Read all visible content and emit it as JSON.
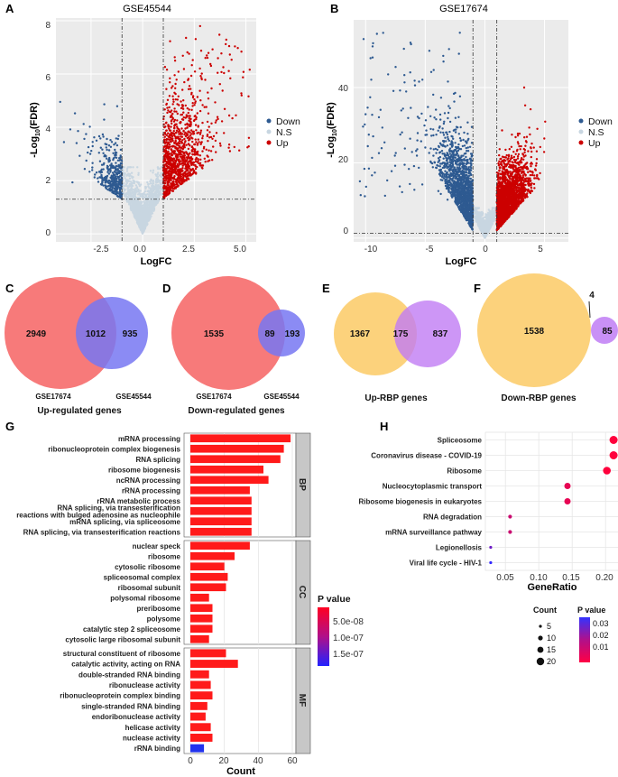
{
  "panels": {
    "A": "A",
    "B": "B",
    "C": "C",
    "D": "D",
    "E": "E",
    "F": "F",
    "G": "G",
    "H": "H"
  },
  "colors": {
    "down": "#2e5a91",
    "ns": "#c8d6e1",
    "up": "#cc0000",
    "panel_bg": "#ebebeb",
    "venn_red": "#f77a7a",
    "venn_blue": "#7777f2",
    "venn_orange": "#fcd27c",
    "venn_purple": "#c07cf4",
    "bar_red": "#ff1a1a",
    "bar_blue": "#2233ee"
  },
  "volcano": {
    "A": {
      "title": "GSE45544",
      "xlabel": "LogFC",
      "ylabel_base": "-Log",
      "ylabel_sub": "10",
      "ylabel_end": "(FDR)",
      "xticks": [
        "-2.5",
        "0.0",
        "2.5",
        "5.0"
      ],
      "yticks": [
        "0",
        "2",
        "4",
        "6",
        "8"
      ],
      "legend": [
        "Down",
        "N.S",
        "Up"
      ]
    },
    "B": {
      "title": "GSE17674",
      "xlabel": "LogFC",
      "ylabel_base": "-Log",
      "ylabel_sub": "10",
      "ylabel_end": "(FDR)",
      "xticks": [
        "-10",
        "-5",
        "0",
        "5"
      ],
      "yticks": [
        "0",
        "20",
        "40"
      ],
      "legend": [
        "Down",
        "N.S",
        "Up"
      ]
    }
  },
  "chart_data": [
    {
      "type": "scatter",
      "panel": "A",
      "title": "GSE45544",
      "xlabel": "LogFC",
      "ylabel": "-Log10(FDR)",
      "xlim": [
        -4.2,
        5.5
      ],
      "ylim": [
        -0.3,
        8.1
      ],
      "thresholds": {
        "logfc": [
          -1,
          1
        ],
        "fdr_line": 1.3
      },
      "series": [
        {
          "name": "Down",
          "n_approx": 350
        },
        {
          "name": "N.S",
          "n_approx": 1500
        },
        {
          "name": "Up",
          "n_approx": 1000
        }
      ]
    },
    {
      "type": "scatter",
      "panel": "B",
      "title": "GSE17674",
      "xlabel": "LogFC",
      "ylabel": "-Log10(FDR)",
      "xlim": [
        -11,
        7
      ],
      "ylim": [
        -1,
        58
      ],
      "thresholds": {
        "logfc": [
          -1,
          1
        ],
        "fdr_line": 1.3
      },
      "series": [
        {
          "name": "Down",
          "n_approx": 1550
        },
        {
          "name": "N.S",
          "n_approx": 1200
        },
        {
          "name": "Up",
          "n_approx": 2000
        }
      ]
    },
    {
      "type": "bar",
      "panel": "G",
      "orientation": "horizontal",
      "xlabel": "Count",
      "xlim": [
        0,
        65
      ],
      "xticks": [
        "0",
        "20",
        "40",
        "60"
      ],
      "groups": [
        {
          "name": "BP",
          "categories": [
            "mRNA processing",
            "ribonucleoprotein complex biogenesis",
            "RNA splicing",
            "ribosome biogenesis",
            "ncRNA processing",
            "rRNA processing",
            "rRNA metabolic process",
            "RNA splicing, via transesterification reactions with bulged adenosine as nucleophile",
            "mRNA splicing, via spliceosome",
            "RNA splicing, via transesterification reactions"
          ],
          "values": [
            59,
            55,
            53,
            43,
            46,
            35,
            36,
            36,
            36,
            36
          ],
          "pvalue": [
            1e-30,
            1e-30,
            1e-30,
            1e-30,
            1e-30,
            1e-30,
            1e-30,
            1e-30,
            1e-30,
            1e-30
          ]
        },
        {
          "name": "CC",
          "categories": [
            "nuclear speck",
            "ribosome",
            "cytosolic ribosome",
            "spliceosomal complex",
            "ribosomal subunit",
            "polysomal ribosome",
            "preribosome",
            "polysome",
            "catalytic step 2 spliceosome",
            "cytosolic large ribosomal subunit"
          ],
          "values": [
            35,
            26,
            20,
            22,
            21,
            11,
            13,
            13,
            13,
            11
          ],
          "pvalue": [
            1e-20,
            1e-20,
            1e-20,
            1e-20,
            1e-20,
            1e-15,
            1e-15,
            1e-15,
            1e-15,
            1e-15
          ]
        },
        {
          "name": "MF",
          "categories": [
            "structural constituent of ribosome",
            "catalytic activity, acting on RNA",
            "double-stranded RNA binding",
            "ribonuclease activity",
            "ribonucleoprotein complex binding",
            "single-stranded RNA binding",
            "endoribonuclease activity",
            "helicase activity",
            "nuclease activity",
            "rRNA binding"
          ],
          "values": [
            21,
            28,
            11,
            12,
            13,
            10,
            9,
            12,
            13,
            8
          ],
          "pvalue": [
            1e-12,
            1e-12,
            1e-10,
            1e-10,
            1e-10,
            1e-09,
            1e-09,
            1e-09,
            1e-09,
            1.9e-07
          ]
        }
      ],
      "legend": {
        "title": "P value",
        "ticks": [
          "5.0e-08",
          "1.0e-07",
          "1.5e-07"
        ]
      }
    },
    {
      "type": "scatter",
      "panel": "H",
      "xlabel": "GeneRatio",
      "xlim": [
        0.02,
        0.22
      ],
      "xticks": [
        "0.05",
        "0.10",
        "0.15",
        "0.20"
      ],
      "categories": [
        "Spliceosome",
        "Coronavirus disease - COVID-19",
        "Ribosome",
        "Nucleocytoplasmic transport",
        "Ribosome biogenesis in eukaryotes",
        "RNA degradation",
        "mRNA surveillance pathway",
        "Legionellosis",
        "Viral life cycle - HIV-1"
      ],
      "x": [
        0.212,
        0.212,
        0.202,
        0.143,
        0.143,
        0.057,
        0.057,
        0.028,
        0.028
      ],
      "count": [
        22,
        22,
        21,
        15,
        15,
        6,
        6,
        3,
        3
      ],
      "pvalue": [
        0.001,
        0.001,
        0.001,
        0.005,
        0.005,
        0.01,
        0.01,
        0.025,
        0.035
      ],
      "legend": {
        "size_title": "Count",
        "size_ticks": [
          "5",
          "10",
          "15",
          "20"
        ],
        "color_title": "P value",
        "color_ticks": [
          "0.03",
          "0.02",
          "0.01"
        ]
      }
    }
  ],
  "venn": {
    "C": {
      "left": "2949",
      "mid": "1012",
      "right": "935",
      "label_left": "GSE17674",
      "label_right": "GSE45544",
      "title": "Up-regulated genes"
    },
    "D": {
      "left": "1535",
      "mid": "89",
      "right": "193",
      "label_left": "GSE17674",
      "label_right": "GSE45544",
      "title": "Down-regulated genes"
    },
    "E": {
      "left": "1367",
      "mid": "175",
      "right": "837",
      "title": "Up-RBP genes"
    },
    "F": {
      "left": "1538",
      "mid": "4",
      "right": "85",
      "title": "Down-RBP genes"
    }
  },
  "strips": {
    "bp": "BP",
    "cc": "CC",
    "mf": "MF"
  }
}
